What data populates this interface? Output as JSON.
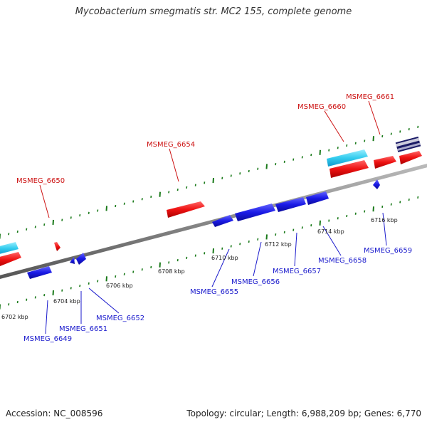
{
  "title": "Mycobacterium smegmatis str. MC2 155, complete genome",
  "footer": {
    "accession": "Accession: NC_008596",
    "topology": "Topology: circular; Length: 6,988,209 bp; Genes: 6,770"
  },
  "kbp_labels": [
    "6702 kbp",
    "6704 kbp",
    "6706 kbp",
    "6708 kbp",
    "6710 kbp",
    "6712 kbp",
    "6714 kbp",
    "6716 kbp"
  ],
  "genes_forward": [
    "MSMEG_6650",
    "MSMEG_6654",
    "MSMEG_6660",
    "MSMEG_6661"
  ],
  "genes_reverse": [
    "MSMEG_6649",
    "MSMEG_6651",
    "MSMEG_6652",
    "MSMEG_6655",
    "MSMEG_6656",
    "MSMEG_6657",
    "MSMEG_6658",
    "MSMEG_6659"
  ],
  "colors": {
    "forward_gene": "#ee1111",
    "reverse_gene": "#1a1ae6",
    "extra_track": "#33ccee",
    "backbone": "#888888",
    "tick": "#1a7a1a",
    "label_forward": "#cc1111",
    "label_reverse": "#1a1acc"
  }
}
